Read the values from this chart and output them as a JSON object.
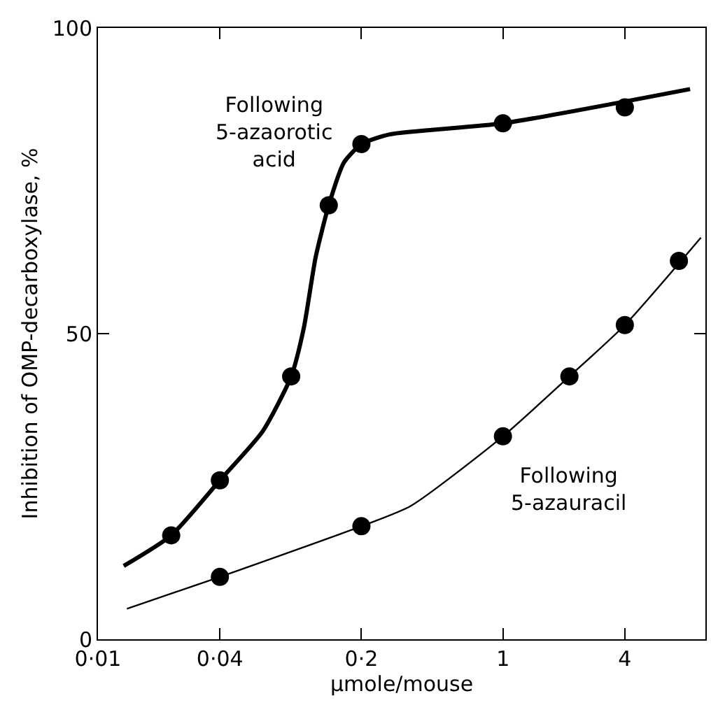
{
  "chart_data": {
    "type": "scatter",
    "xlabel": "μmole/mouse",
    "ylabel": "Inhibition of OMP-decarboxylase, %",
    "log": "x",
    "xlim": [
      0.01,
      10
    ],
    "ylim": [
      0,
      100
    ],
    "xticks": [
      {
        "value": 0.01,
        "label": "0·01"
      },
      {
        "value": 0.04,
        "label": "0·04"
      },
      {
        "value": 0.2,
        "label": "0·2"
      },
      1,
      4
    ],
    "yticks": [
      0,
      50,
      100
    ],
    "marker": "circle",
    "line_style": "solid",
    "series": [
      {
        "type": "line",
        "marker": "none",
        "color": "#000000",
        "x": [
          0.0134,
          0.023,
          0.04,
          0.065,
          0.09,
          0.104,
          0.119,
          0.138,
          0.164,
          0.2,
          0.276,
          1,
          8.4
        ],
        "values": [
          12,
          17,
          26,
          34,
          43,
          51,
          62.6,
          71,
          78,
          81,
          82.6,
          84.4,
          90
        ]
      },
      {
        "color": "#000000",
        "x": [
          0.023,
          0.04,
          0.09,
          0.138,
          0.2,
          1,
          4
        ],
        "values": [
          17,
          26,
          43,
          71,
          81,
          84.4,
          87
        ]
      },
      {
        "type": "line",
        "marker": "none",
        "color": "#000000",
        "x": [
          0.0139,
          0.04,
          0.2,
          0.35,
          1,
          2.13,
          4,
          9.5
        ],
        "values": [
          5,
          10.2,
          18.5,
          21.8,
          33.2,
          43,
          51.4,
          65.7
        ]
      },
      {
        "color": "#000000",
        "x": [
          0.04,
          0.2,
          1,
          2.13,
          4,
          7.4
        ],
        "values": [
          10.2,
          18.5,
          33.2,
          43,
          51.4,
          61.9
        ]
      }
    ],
    "annotations": [
      "Following\n5-azaorotic\nacid",
      "Following\n5-azauracil"
    ]
  }
}
